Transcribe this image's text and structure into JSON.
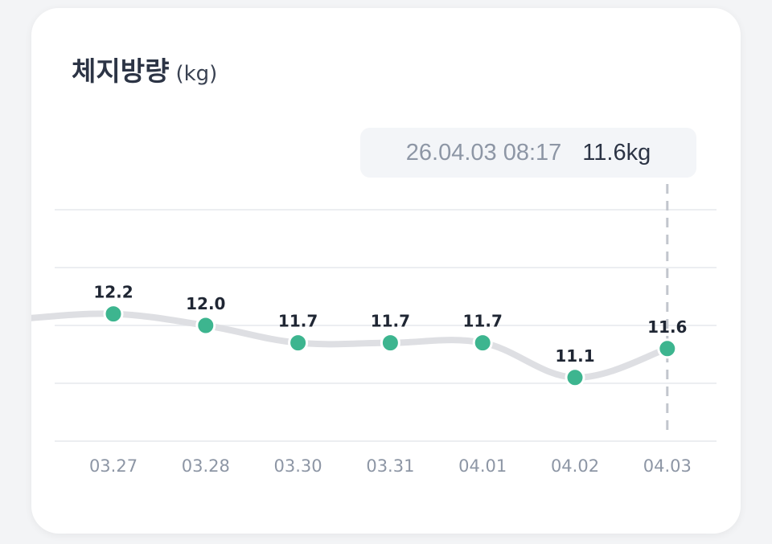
{
  "card": {
    "title": "체지방량",
    "unit": "(kg)"
  },
  "tooltip": {
    "timestamp": "26.04.03 08:17",
    "value": "11.6kg"
  },
  "colors": {
    "point": "#3db58f",
    "line": "#dedfe3",
    "grid": "#eceef1",
    "cursor": "#c2c6cd",
    "label": "#1f2633",
    "tick": "#8d96a5"
  },
  "chart_data": {
    "type": "line",
    "title": "체지방량",
    "unit": "(kg)",
    "categories": [
      "03.27",
      "03.28",
      "03.30",
      "03.31",
      "04.01",
      "04.02",
      "04.03"
    ],
    "series": [
      {
        "values": [
          12.2,
          12.0,
          11.7,
          11.7,
          11.7,
          11.1,
          11.6
        ],
        "labels": [
          "12.2",
          "12.0",
          "11.7",
          "11.7",
          "11.7",
          "11.1",
          "11.6"
        ]
      }
    ],
    "ylim": [
      10.0,
      14.0
    ],
    "grid": true,
    "selected_category": "04.03",
    "legend": "none"
  }
}
